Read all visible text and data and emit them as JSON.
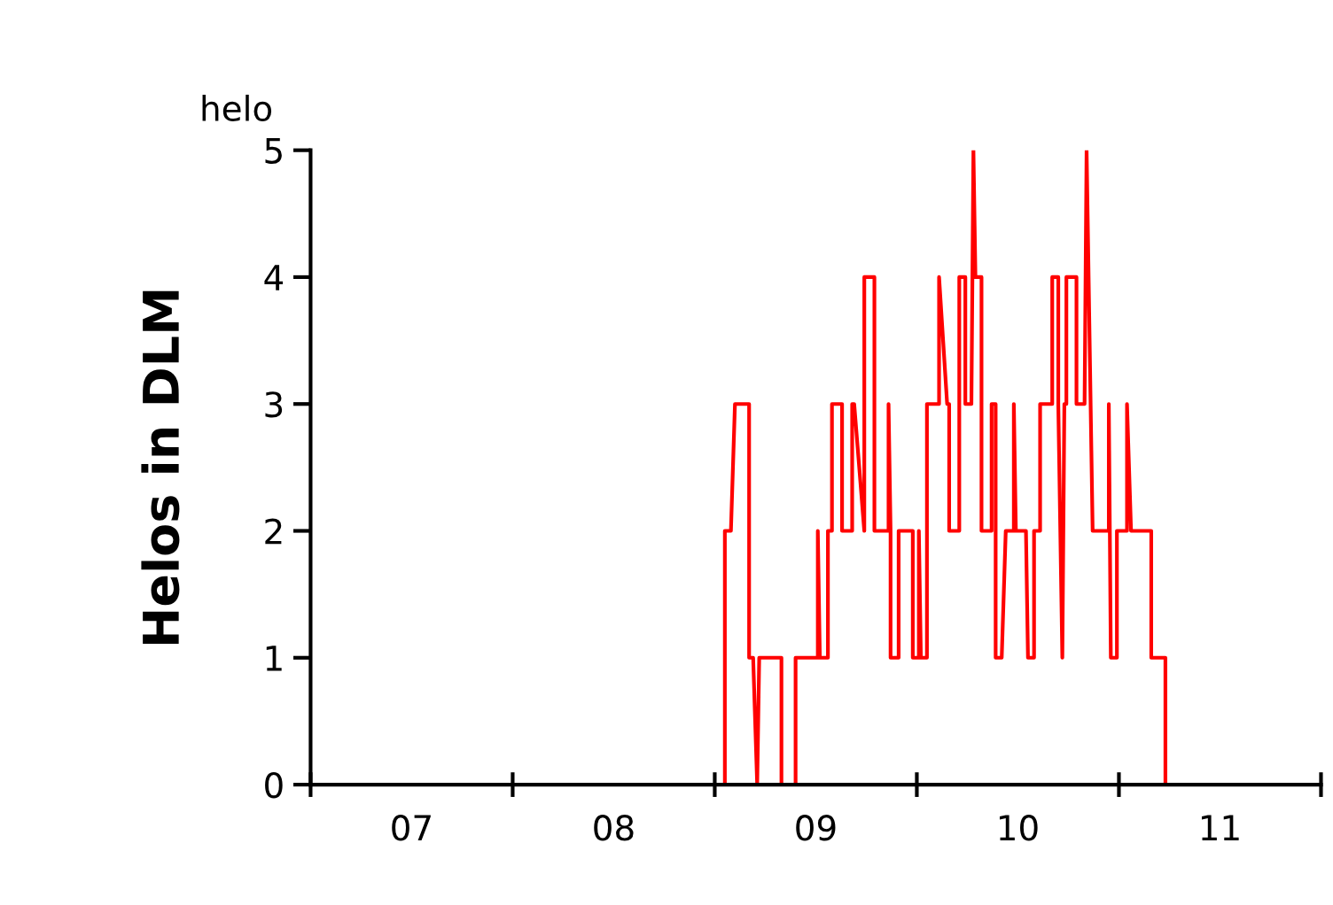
{
  "chart_data": {
    "type": "line",
    "ylabel": "Helos in DLM",
    "annotations": [
      "helo"
    ],
    "xlim": [
      6.5,
      11.5
    ],
    "xticks": [
      {
        "value": 6.5,
        "label": null
      },
      {
        "value": 7,
        "label": "07"
      },
      {
        "value": 7.5,
        "label": null
      },
      {
        "value": 8,
        "label": "08"
      },
      {
        "value": 8.5,
        "label": null
      },
      {
        "value": 9,
        "label": "09"
      },
      {
        "value": 9.5,
        "label": null
      },
      {
        "value": 10,
        "label": "10"
      },
      {
        "value": 10.5,
        "label": null
      },
      {
        "value": 11,
        "label": "11"
      },
      {
        "value": 11.5,
        "label": null
      }
    ],
    "ylim": [
      0,
      5
    ],
    "yticks": [
      0,
      1,
      2,
      3,
      4,
      5
    ],
    "grid": false,
    "marker": "none",
    "line_style": "solid",
    "series": [
      {
        "color": "#ff0000",
        "x": [
          6.5,
          8.55,
          8.55,
          8.58,
          8.6,
          8.67,
          8.67,
          8.69,
          8.71,
          8.72,
          8.83,
          8.83,
          8.9,
          8.9,
          9.01,
          9.01,
          9.02,
          9.06,
          9.06,
          9.08,
          9.08,
          9.13,
          9.13,
          9.18,
          9.18,
          9.19,
          9.24,
          9.24,
          9.29,
          9.29,
          9.36,
          9.36,
          9.37,
          9.37,
          9.41,
          9.41,
          9.48,
          9.48,
          9.51,
          9.51,
          9.52,
          9.55,
          9.55,
          9.61,
          9.61,
          9.65,
          9.66,
          9.66,
          9.71,
          9.71,
          9.74,
          9.74,
          9.77,
          9.78,
          9.79,
          9.82,
          9.82,
          9.87,
          9.87,
          9.89,
          9.89,
          9.92,
          9.94,
          9.98,
          9.98,
          9.99,
          10.04,
          10.05,
          10.08,
          10.08,
          10.11,
          10.11,
          10.17,
          10.17,
          10.2,
          10.2,
          10.22,
          10.23,
          10.24,
          10.24,
          10.29,
          10.29,
          10.33,
          10.34,
          10.37,
          10.45,
          10.45,
          10.46,
          10.49,
          10.49,
          10.54,
          10.54,
          10.56,
          10.66,
          10.66,
          10.73,
          10.73,
          11.5
        ],
        "values": [
          0,
          0,
          2,
          2,
          3,
          3,
          1,
          1,
          0,
          1,
          1,
          0,
          0,
          1,
          1,
          2,
          1,
          1,
          2,
          2,
          3,
          3,
          2,
          2,
          3,
          3,
          2,
          4,
          4,
          2,
          2,
          3,
          2,
          1,
          1,
          2,
          2,
          1,
          1,
          2,
          1,
          1,
          3,
          3,
          4,
          3,
          3,
          2,
          2,
          4,
          4,
          3,
          3,
          5,
          4,
          4,
          2,
          2,
          3,
          3,
          1,
          1,
          2,
          2,
          3,
          2,
          2,
          1,
          1,
          2,
          2,
          3,
          3,
          4,
          4,
          3,
          1,
          3,
          3,
          4,
          4,
          3,
          3,
          5,
          2,
          2,
          3,
          1,
          1,
          2,
          2,
          3,
          2,
          2,
          1,
          1,
          0,
          0
        ]
      }
    ]
  }
}
